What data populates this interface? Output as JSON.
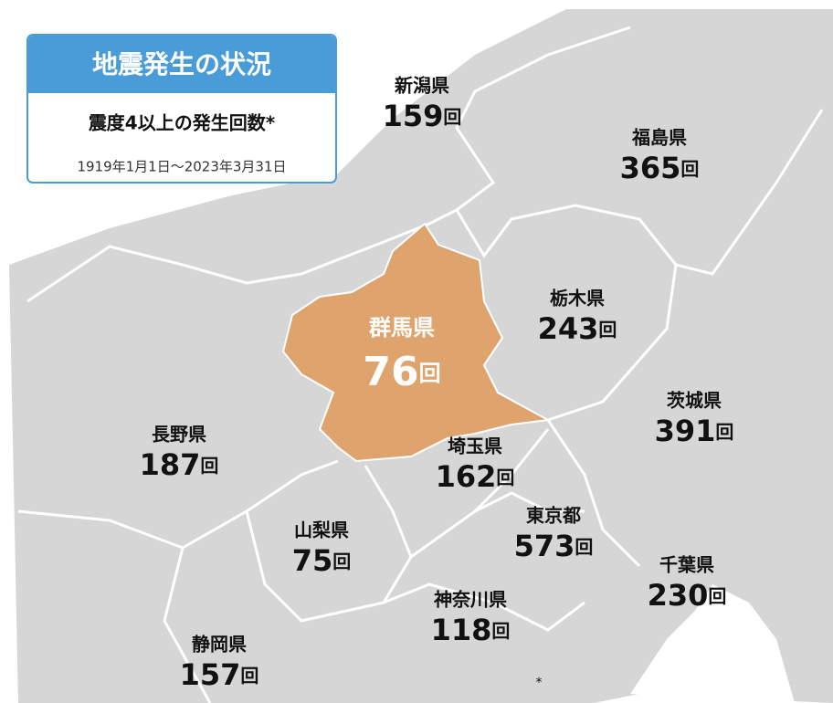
{
  "title": "地震発生の状況",
  "subtitle": "震度4以上の発生回数*",
  "period": "1919年1月1日～2023年3月31日",
  "footnote_mark": "*",
  "unit": "回",
  "prefectures": [
    {
      "name": "新潟県",
      "count": 159
    },
    {
      "name": "福島県",
      "count": 365
    },
    {
      "name": "栃木県",
      "count": 243
    },
    {
      "name": "群馬県",
      "count": 76
    },
    {
      "name": "茨城県",
      "count": 391
    },
    {
      "name": "長野県",
      "count": 187
    },
    {
      "name": "埼玉県",
      "count": 162
    },
    {
      "name": "東京都",
      "count": 573
    },
    {
      "name": "山梨県",
      "count": 75
    },
    {
      "name": "千葉県",
      "count": 230
    },
    {
      "name": "神奈川県",
      "count": 118
    },
    {
      "name": "静岡県",
      "count": 157
    }
  ]
}
